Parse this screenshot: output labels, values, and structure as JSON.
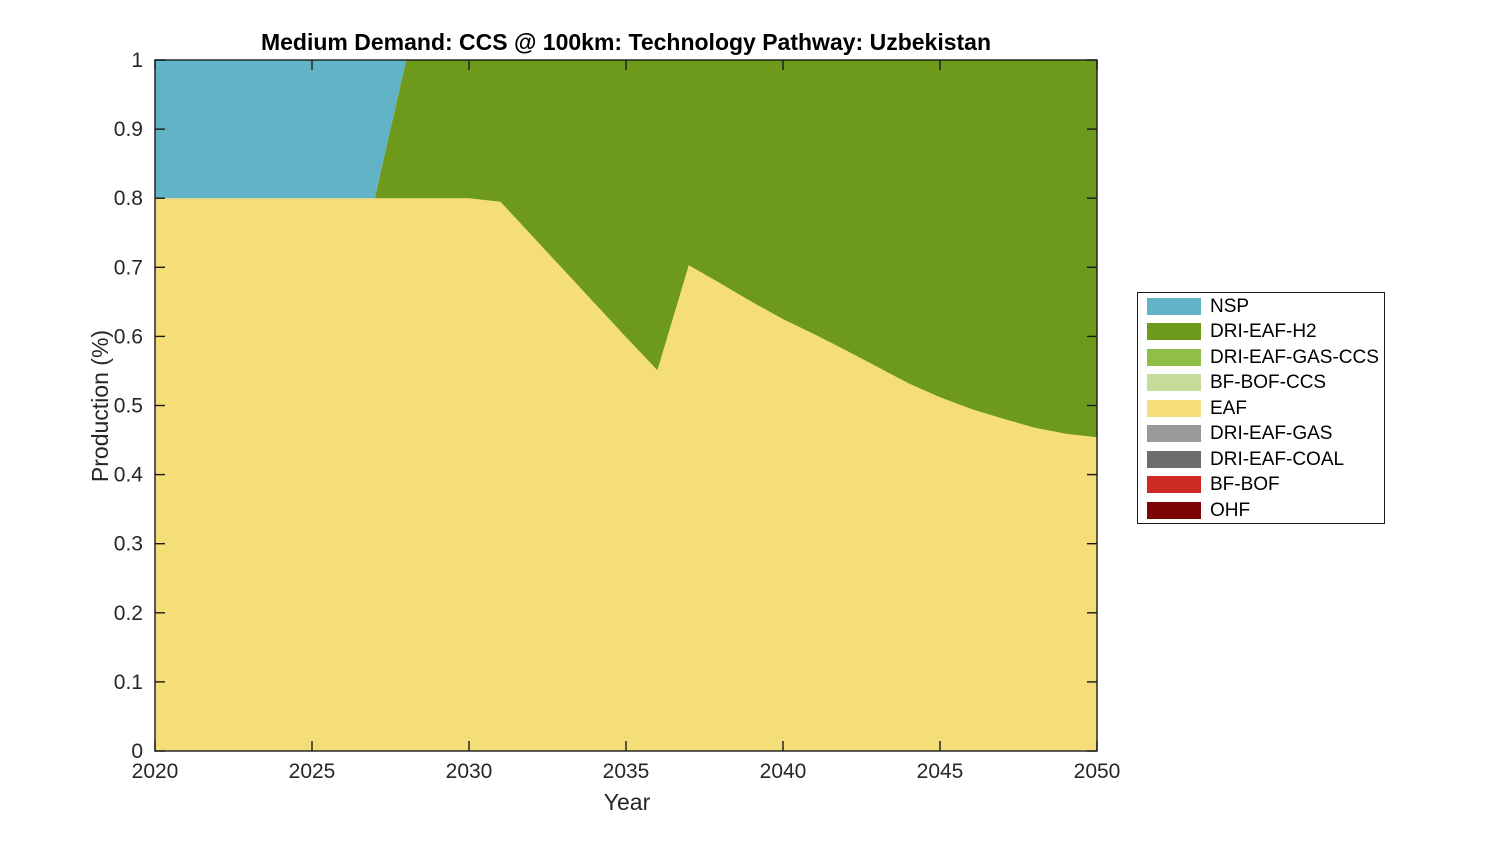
{
  "figure": {
    "title": "Medium Demand: CCS @ 100km: Technology Pathway: Uzbekistan",
    "xlabel": "Year",
    "ylabel": "Production (%)"
  },
  "chart_data": {
    "type": "area",
    "stacked": true,
    "title": "Medium Demand: CCS @ 100km: Technology Pathway: Uzbekistan",
    "xlabel": "Year",
    "ylabel": "Production (%)",
    "xlim": [
      2020,
      2050
    ],
    "ylim": [
      0,
      1
    ],
    "grid": false,
    "legend_position": "outside-right",
    "stack_order": "last-listed-series-at-bottom",
    "axis_color": "#1a1a1a",
    "x": [
      2020,
      2021,
      2022,
      2023,
      2024,
      2025,
      2026,
      2027,
      2028,
      2029,
      2030,
      2031,
      2032,
      2033,
      2034,
      2035,
      2036,
      2037,
      2038,
      2039,
      2040,
      2041,
      2042,
      2043,
      2044,
      2045,
      2046,
      2047,
      2048,
      2049,
      2050
    ],
    "xticks": [
      2020,
      2025,
      2030,
      2035,
      2040,
      2045,
      2050
    ],
    "xticklabels": [
      "2020",
      "2025",
      "2030",
      "2035",
      "2040",
      "2045",
      "2050"
    ],
    "yticks": [
      0,
      0.1,
      0.2,
      0.3,
      0.4,
      0.5,
      0.6,
      0.7,
      0.8,
      0.9,
      1
    ],
    "yticklabels": [
      "0",
      "0.1",
      "0.2",
      "0.3",
      "0.4",
      "0.5",
      "0.6",
      "0.7",
      "0.8",
      "0.9",
      "1"
    ],
    "series": [
      {
        "name": "NSP",
        "color": "#63B3C6",
        "values": [
          0.2,
          0.2,
          0.2,
          0.2,
          0.2,
          0.2,
          0.2,
          0.2,
          0,
          0,
          0,
          0,
          0,
          0,
          0,
          0,
          0,
          0,
          0,
          0,
          0,
          0,
          0,
          0,
          0,
          0,
          0,
          0,
          0,
          0,
          0
        ]
      },
      {
        "name": "DRI-EAF-H2",
        "color": "#6D9A1B",
        "values": [
          0,
          0,
          0,
          0,
          0,
          0,
          0,
          0,
          0.2,
          0.2,
          0.2,
          0.205,
          0.254,
          0.303,
          0.352,
          0.401,
          0.449,
          0.297,
          0.323,
          0.35,
          0.375,
          0.397,
          0.42,
          0.444,
          0.468,
          0.488,
          0.505,
          0.519,
          0.532,
          0.541,
          0.546
        ]
      },
      {
        "name": "DRI-EAF-GAS-CCS",
        "color": "#90BF48",
        "values": [
          0,
          0,
          0,
          0,
          0,
          0,
          0,
          0,
          0,
          0,
          0,
          0,
          0,
          0,
          0,
          0,
          0,
          0,
          0,
          0,
          0,
          0,
          0,
          0,
          0,
          0,
          0,
          0,
          0,
          0,
          0
        ]
      },
      {
        "name": "BF-BOF-CCS",
        "color": "#C6DC9B",
        "values": [
          0,
          0,
          0,
          0,
          0,
          0,
          0,
          0,
          0,
          0,
          0,
          0,
          0,
          0,
          0,
          0,
          0,
          0,
          0,
          0,
          0,
          0,
          0,
          0,
          0,
          0,
          0,
          0,
          0,
          0,
          0
        ]
      },
      {
        "name": "EAF",
        "color": "#F5DE77",
        "values": [
          0.8,
          0.8,
          0.8,
          0.8,
          0.8,
          0.8,
          0.8,
          0.8,
          0.8,
          0.8,
          0.8,
          0.795,
          0.746,
          0.697,
          0.648,
          0.599,
          0.551,
          0.703,
          0.677,
          0.65,
          0.625,
          0.603,
          0.58,
          0.556,
          0.532,
          0.512,
          0.495,
          0.481,
          0.468,
          0.459,
          0.454
        ]
      },
      {
        "name": "DRI-EAF-GAS",
        "color": "#9A999A",
        "values": [
          0,
          0,
          0,
          0,
          0,
          0,
          0,
          0,
          0,
          0,
          0,
          0,
          0,
          0,
          0,
          0,
          0,
          0,
          0,
          0,
          0,
          0,
          0,
          0,
          0,
          0,
          0,
          0,
          0,
          0,
          0
        ]
      },
      {
        "name": "DRI-EAF-COAL",
        "color": "#6E6D6E",
        "values": [
          0,
          0,
          0,
          0,
          0,
          0,
          0,
          0,
          0,
          0,
          0,
          0,
          0,
          0,
          0,
          0,
          0,
          0,
          0,
          0,
          0,
          0,
          0,
          0,
          0,
          0,
          0,
          0,
          0,
          0,
          0
        ]
      },
      {
        "name": "BF-BOF",
        "color": "#CD2A23",
        "values": [
          0,
          0,
          0,
          0,
          0,
          0,
          0,
          0,
          0,
          0,
          0,
          0,
          0,
          0,
          0,
          0,
          0,
          0,
          0,
          0,
          0,
          0,
          0,
          0,
          0,
          0,
          0,
          0,
          0,
          0,
          0
        ]
      },
      {
        "name": "OHF",
        "color": "#7C0405",
        "values": [
          0,
          0,
          0,
          0,
          0,
          0,
          0,
          0,
          0,
          0,
          0,
          0,
          0,
          0,
          0,
          0,
          0,
          0,
          0,
          0,
          0,
          0,
          0,
          0,
          0,
          0,
          0,
          0,
          0,
          0,
          0
        ]
      }
    ]
  }
}
